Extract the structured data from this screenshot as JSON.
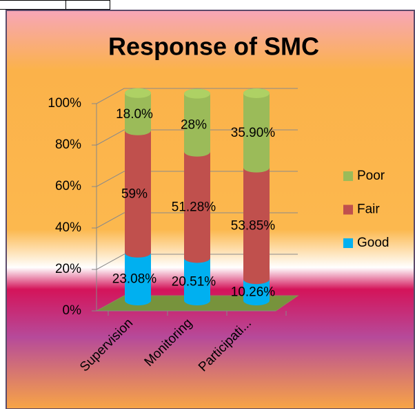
{
  "chart_data": {
    "type": "stacked_cylinder",
    "title": "Response of SMC",
    "categories": [
      "Supervision",
      "Monitoring",
      "Participati..."
    ],
    "series": [
      {
        "name": "Good",
        "color": "#00b0f0",
        "values": [
          23.08,
          20.51,
          10.26
        ],
        "value_labels": [
          "23.08%",
          "20.51%",
          "10.26%"
        ]
      },
      {
        "name": "Fair",
        "color": "#c0504d",
        "values": [
          59,
          51.28,
          53.85
        ],
        "value_labels": [
          "59%",
          "51.28%",
          "53.85%"
        ]
      },
      {
        "name": "Poor",
        "color": "#9bbb59",
        "values": [
          18.0,
          28,
          35.9
        ],
        "value_labels": [
          "18.0%",
          "28%",
          "35.90%"
        ]
      }
    ],
    "ylim": [
      0,
      100
    ],
    "yticks": [
      {
        "value": 0,
        "label": "0%"
      },
      {
        "value": 20,
        "label": "20%"
      },
      {
        "value": 40,
        "label": "40%"
      },
      {
        "value": 60,
        "label": "60%"
      },
      {
        "value": 80,
        "label": "80%"
      },
      {
        "value": 100,
        "label": "100%"
      }
    ],
    "grid": true,
    "legend": "right"
  }
}
